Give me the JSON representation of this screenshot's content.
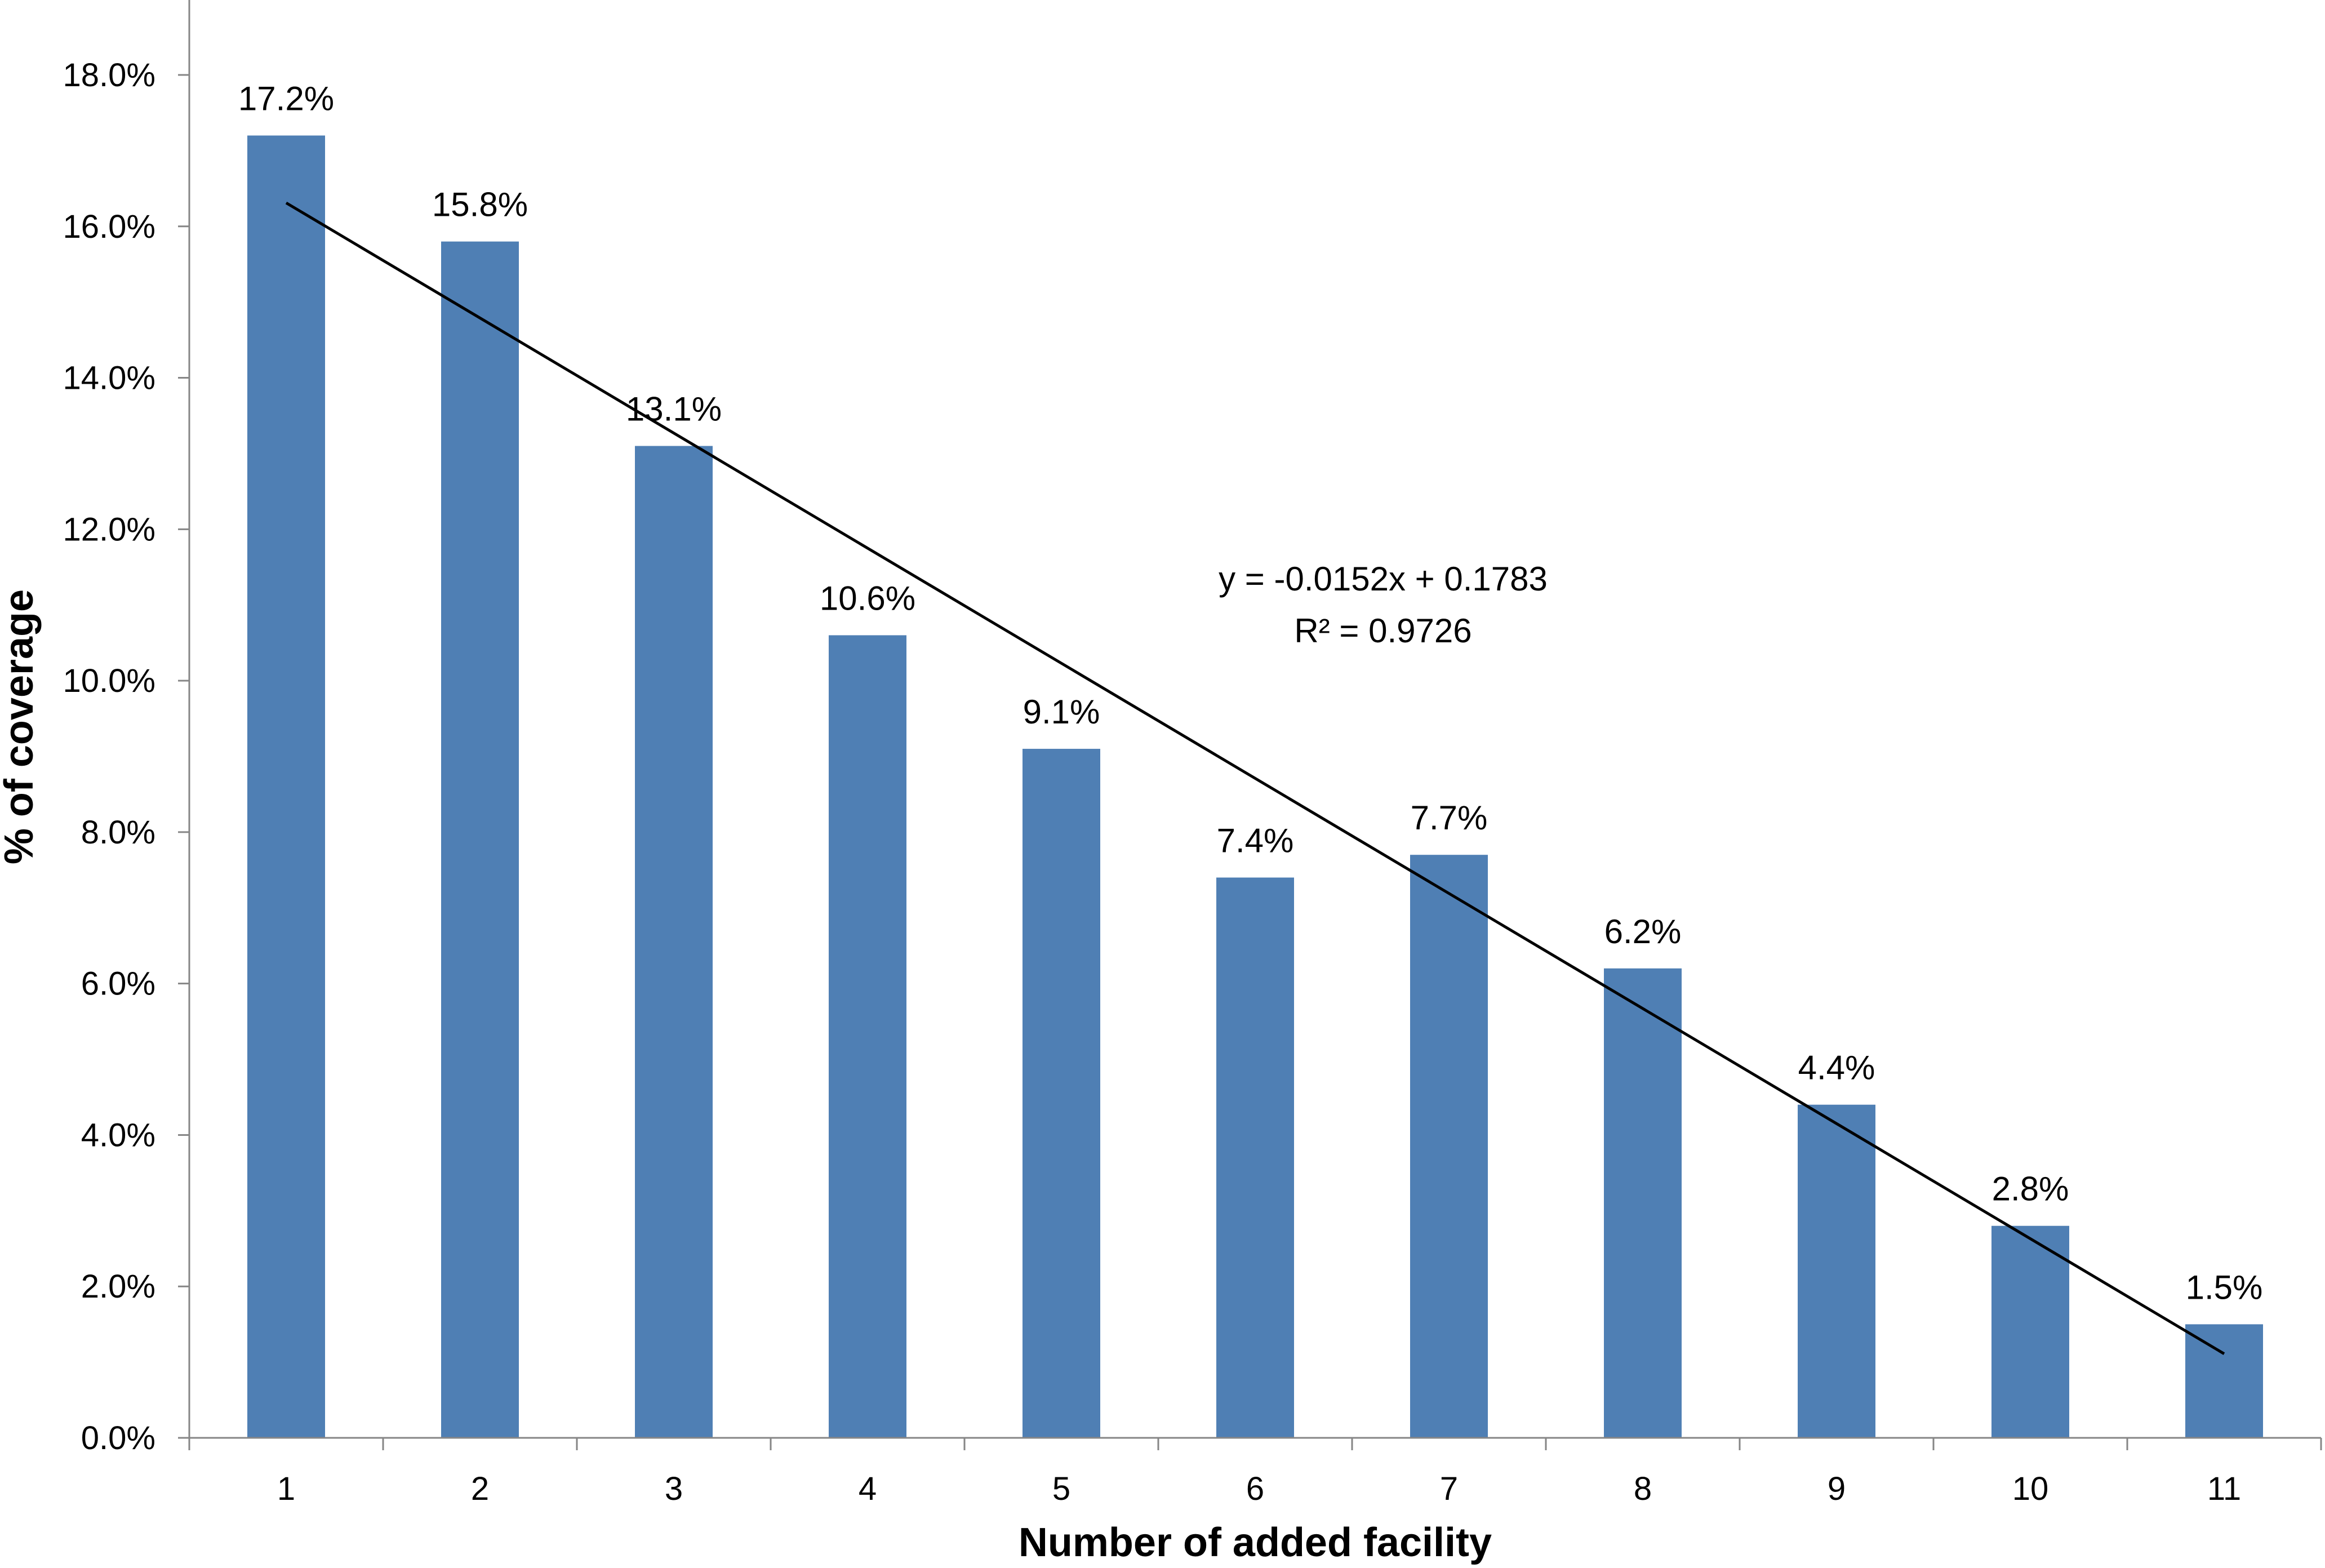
{
  "chart_data": {
    "type": "bar",
    "categories": [
      "1",
      "2",
      "3",
      "4",
      "5",
      "6",
      "7",
      "8",
      "9",
      "10",
      "11"
    ],
    "values": [
      0.172,
      0.158,
      0.131,
      0.106,
      0.091,
      0.074,
      0.077,
      0.062,
      0.044,
      0.028,
      0.015
    ],
    "data_labels": [
      "17.2%",
      "15.8%",
      "13.1%",
      "10.6%",
      "9.1%",
      "7.4%",
      "7.7%",
      "6.2%",
      "4.4%",
      "2.8%",
      "1.5%"
    ],
    "title": "",
    "xlabel": "Number of  added facility",
    "ylabel": "% of coverage",
    "ylim": [
      0,
      0.18
    ],
    "yticks": [
      0,
      0.02,
      0.04,
      0.06,
      0.08,
      0.1,
      0.12,
      0.14,
      0.16,
      0.18
    ],
    "ytick_labels": [
      "0.0%",
      "2.0%",
      "4.0%",
      "6.0%",
      "8.0%",
      "10.0%",
      "12.0%",
      "14.0%",
      "16.0%",
      "18.0%"
    ],
    "grid": false,
    "legend": "none",
    "trendline": {
      "type": "linear",
      "slope": -0.0152,
      "intercept": 0.1783,
      "equation": "y = -0.0152x + 0.1783",
      "r_squared": "R² = 0.9726"
    },
    "colors": {
      "bar": "#4f7fb4",
      "trendline": "#000000",
      "axis": "#868686"
    }
  }
}
